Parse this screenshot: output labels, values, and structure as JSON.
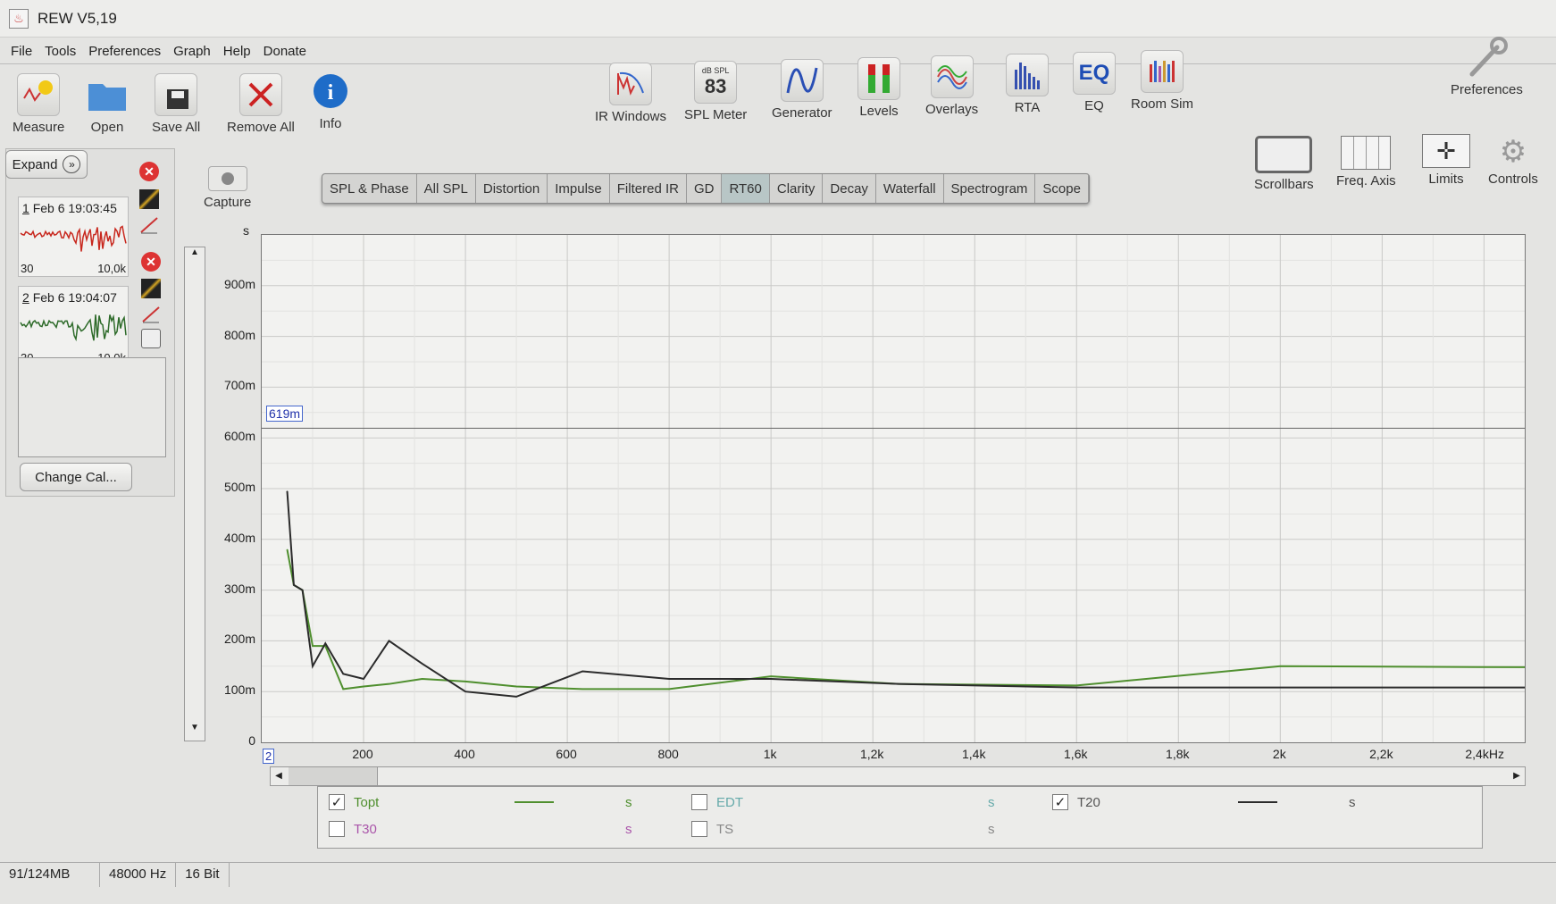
{
  "window": {
    "title": "REW V5,19"
  },
  "menu": [
    "File",
    "Tools",
    "Preferences",
    "Graph",
    "Help",
    "Donate"
  ],
  "toolbar": {
    "left": [
      {
        "label": "Measure",
        "icon": "measure-icon"
      },
      {
        "label": "Open",
        "icon": "folder-icon"
      },
      {
        "label": "Save All",
        "icon": "save-icon"
      },
      {
        "label": "Remove All",
        "icon": "remove-icon"
      },
      {
        "label": "Info",
        "icon": "info-icon"
      }
    ],
    "center": [
      {
        "label": "IR Windows",
        "icon": "ir-windows-icon"
      },
      {
        "label": "SPL Meter",
        "icon": "spl-meter-icon",
        "badge_top": "dB SPL",
        "badge_value": "83"
      },
      {
        "label": "Generator",
        "icon": "generator-icon"
      },
      {
        "label": "Levels",
        "icon": "levels-icon"
      },
      {
        "label": "Overlays",
        "icon": "overlays-icon"
      },
      {
        "label": "RTA",
        "icon": "rta-icon"
      },
      {
        "label": "EQ",
        "icon": "eq-icon"
      },
      {
        "label": "Room Sim",
        "icon": "room-sim-icon"
      }
    ],
    "preferences": "Preferences"
  },
  "left_panel": {
    "expand": "Expand",
    "measurements": [
      {
        "index": "1",
        "date": "Feb 6 19:03:45",
        "range_start": "30",
        "range_end": "10,0k",
        "color": "#c8281e"
      },
      {
        "index": "2",
        "date": "Feb 6 19:04:07",
        "range_start": "30",
        "range_end": "10,0k",
        "color": "#2e6b2a"
      }
    ],
    "change_cal": "Change Cal..."
  },
  "capture": "Capture",
  "tabs": [
    "SPL & Phase",
    "All SPL",
    "Distortion",
    "Impulse",
    "Filtered IR",
    "GD",
    "RT60",
    "Clarity",
    "Decay",
    "Waterfall",
    "Spectrogram",
    "Scope"
  ],
  "active_tab": "RT60",
  "graph_tools": [
    {
      "label": "Scrollbars",
      "icon": "scrollbars-icon"
    },
    {
      "label": "Freq. Axis",
      "icon": "freq-axis-icon"
    },
    {
      "label": "Limits",
      "icon": "limits-icon"
    },
    {
      "label": "Controls",
      "icon": "gear-icon"
    }
  ],
  "chart_data": {
    "type": "line",
    "ylabel": "s",
    "xlim": [
      0,
      2480
    ],
    "ylim": [
      0,
      1.0
    ],
    "grid": true,
    "x_start_label": "2",
    "yticks": [
      {
        "v": 0,
        "label": "0"
      },
      {
        "v": 0.1,
        "label": "100m"
      },
      {
        "v": 0.2,
        "label": "200m"
      },
      {
        "v": 0.3,
        "label": "300m"
      },
      {
        "v": 0.4,
        "label": "400m"
      },
      {
        "v": 0.5,
        "label": "500m"
      },
      {
        "v": 0.6,
        "label": "600m"
      },
      {
        "v": 0.7,
        "label": "700m"
      },
      {
        "v": 0.8,
        "label": "800m"
      },
      {
        "v": 0.9,
        "label": "900m"
      }
    ],
    "xticks": [
      {
        "v": 200,
        "label": "200"
      },
      {
        "v": 400,
        "label": "400"
      },
      {
        "v": 600,
        "label": "600"
      },
      {
        "v": 800,
        "label": "800"
      },
      {
        "v": 1000,
        "label": "1k"
      },
      {
        "v": 1200,
        "label": "1,2k"
      },
      {
        "v": 1400,
        "label": "1,4k"
      },
      {
        "v": 1600,
        "label": "1,6k"
      },
      {
        "v": 1800,
        "label": "1,8k"
      },
      {
        "v": 2000,
        "label": "2k"
      },
      {
        "v": 2200,
        "label": "2,2k"
      },
      {
        "v": 2400,
        "label": "2,4kHz"
      }
    ],
    "cursor": {
      "value": 0.619,
      "label": "619m"
    },
    "series": [
      {
        "name": "Topt",
        "color": "#4f8f2e",
        "x": [
          50,
          63,
          80,
          100,
          125,
          160,
          200,
          250,
          315,
          400,
          500,
          630,
          800,
          1000,
          1250,
          1600,
          2000,
          2480
        ],
        "y": [
          0.38,
          0.31,
          0.3,
          0.19,
          0.19,
          0.105,
          0.11,
          0.115,
          0.125,
          0.12,
          0.11,
          0.105,
          0.105,
          0.13,
          0.115,
          0.112,
          0.15,
          0.148
        ]
      },
      {
        "name": "T20",
        "color": "#2b2b2b",
        "x": [
          50,
          63,
          80,
          100,
          125,
          160,
          200,
          250,
          315,
          400,
          500,
          630,
          800,
          1000,
          1250,
          1600,
          2000,
          2480
        ],
        "y": [
          0.495,
          0.31,
          0.3,
          0.15,
          0.195,
          0.135,
          0.125,
          0.2,
          0.155,
          0.1,
          0.09,
          0.14,
          0.125,
          0.125,
          0.115,
          0.108,
          0.108,
          0.108
        ]
      }
    ]
  },
  "legend": [
    {
      "label": "Topt",
      "checked": true,
      "unit": "s",
      "color": "#4f8f2e",
      "text_color": "#4f8f2e"
    },
    {
      "label": "EDT",
      "checked": false,
      "unit": "s",
      "color": "#3aa",
      "text_color": "#6aa"
    },
    {
      "label": "T20",
      "checked": true,
      "unit": "s",
      "color": "#2b2b2b",
      "text_color": "#555"
    },
    {
      "label": "T30",
      "checked": false,
      "unit": "s",
      "color": "#a5a",
      "text_color": "#a5a"
    },
    {
      "label": "TS",
      "checked": false,
      "unit": "s",
      "color": "#999",
      "text_color": "#888"
    }
  ],
  "status": [
    "91/124MB",
    "48000 Hz",
    "16 Bit"
  ]
}
